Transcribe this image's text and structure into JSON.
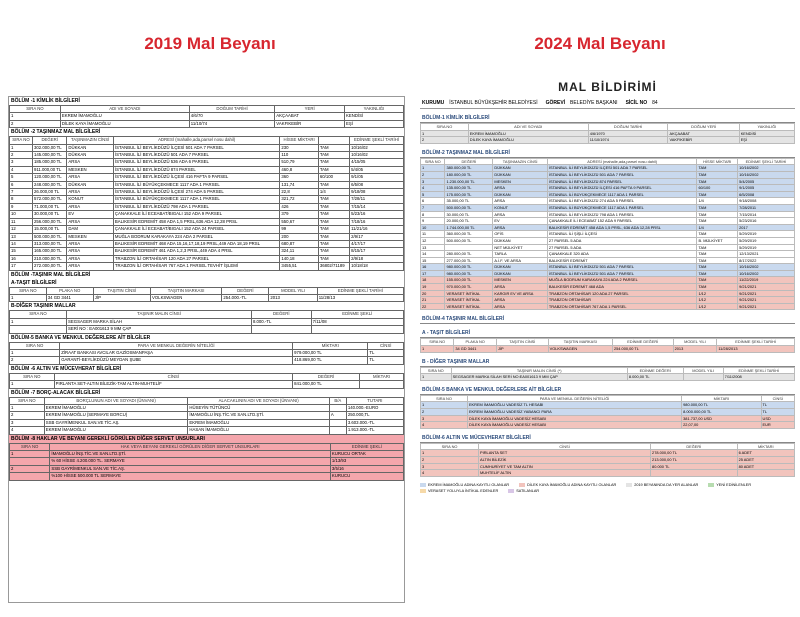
{
  "left": {
    "heading": "2019 Mal Beyanı",
    "sections": [
      {
        "title": "BÖLÜM -1 KİMLİK BİLGİLERİ",
        "headers": [
          "SIRA NO",
          "ADI VE SOYADI",
          "DOĞUM TARİHİ",
          "YERİ",
          "YAKINLIĞI"
        ],
        "rows": [
          [
            "1",
            "EKREM İMAMOĞLU",
            "4/6/70",
            "AKÇAABAT",
            "KENDİSİ"
          ],
          [
            "2",
            "DİLEK KAYA İMAMOĞLU",
            "11/10/74",
            "VAKFIKEBİR",
            "EŞİ"
          ]
        ]
      },
      {
        "title": "BÖLÜM -2 TAŞINMAZ MAL BİLGİLERİ",
        "headers": [
          "SIRA NO",
          "DEĞERİ",
          "TAŞINMAZIN CİNSİ",
          "ADRESİ (mahalle,ada,parsel nosu dahil)",
          "HİSSE MİKTARI",
          "",
          "EDİNME ŞEKLİ TARİHİ"
        ],
        "rows": [
          [
            "1",
            "302.000,00 TL",
            "DÜKKAN",
            "İSTANBUL İLİ BEYLİKDÜZÜ İLÇESİ 501 ADA 7 PARSEL",
            "230",
            "TAM",
            "10/16/02"
          ],
          [
            "2",
            "145.000,00 TL",
            "DÜKKAN",
            "İSTANBUL İLİ BEYLİKDÜZÜ 501 ADA 7 PARSEL",
            "110",
            "TAM",
            "10/16/02"
          ],
          [
            "3",
            "185.000,00 TL",
            "ARSA",
            "İSTANBUL İLİ BEYLİKDÜZÜ 536 ADA 6 PARSEL",
            "510,79",
            "TAM",
            "4/15/05"
          ],
          [
            "4",
            "911.000,00 TL",
            "MESKEN",
            "İSTANBUL İLİ BEYLİKDÜZÜ 874 PARSEL",
            "460,8",
            "TAM",
            "5/4/05"
          ],
          [
            "5",
            "120.000,00 TL",
            "ARSA",
            "İSTANBUL İLİ BEYLİKDÜZÜ İLÇESİ 416 PAFTA 9 PARSEL",
            "360",
            "60/100",
            "9/1/05"
          ],
          [
            "6",
            "248.000,00 TL",
            "DÜKKAN",
            "İSTANBUL İLİ BÜYÜKÇEKMECE 1117 ADA 1 PARSEL",
            "131,74",
            "TAM",
            "6/5/08"
          ],
          [
            "7",
            "26.000,00 TL",
            "ARSA",
            "İSTANBUL İLİ BEYLİKDÜZÜ İLÇESİ 274 ADA 5 PARSEL",
            "22,8",
            "1/4",
            "9/18/08"
          ],
          [
            "8",
            "572.000,00 TL",
            "KONUT",
            "İSTANBUL İLİ BÜYÜKÇEKMECE 1117 ADA 1 PARSEL",
            "321,72",
            "TAM",
            "7/28/11"
          ],
          [
            "9",
            "71.000,00 TL",
            "ARSA",
            "İSTANBUL İLİ BEYLİKDÜZÜ 798 ADA 1 PARSEL",
            "426",
            "TAM",
            "7/15/14"
          ],
          [
            "10",
            "30.000,00 TL",
            "EV",
            "ÇANAKKALE İLİ ECEABAT/BIGALI 152 ADA 9 PARSEL",
            "379",
            "TAM",
            "5/23/16"
          ],
          [
            "11",
            "256.000,00 TL",
            "ARSA",
            "BALIKESİR EDREMİT 458 ADA 1,5 PRSL,636 ADA 12,28 PRSL",
            "550,67",
            "TAM",
            "7/18/16"
          ],
          [
            "12",
            "15.000,00 TL",
            "DAM",
            "ÇANAKKALE İLİ ECEABAT/BIGALI 152 ADA 24 PARSEL",
            "99",
            "TAM",
            "11/21/16"
          ],
          [
            "13",
            "500.000,00 TL",
            "MESKEN",
            "MUĞLA BODRUM KARAKAYA 224 ADA 2 PARSEL",
            "200",
            "TAM",
            "2/9/17"
          ],
          [
            "14",
            "313.000,00 TL",
            "ARSA",
            "BALIKESİR EDREMİT 468 ADA 15,16,17,18,19 PRSL,449 ADA 18,19 PRSL",
            "680,87",
            "TAM",
            "4/17/17"
          ],
          [
            "15",
            "165.000,00 TL",
            "ARSA",
            "BALIKESİR EDREMİT 461 ADA 1,2,3 PRSL,449 ADA 4 PRSL",
            "324,11",
            "TAM",
            "8/15/17"
          ],
          [
            "16",
            "210.000,00 TL",
            "ARSA",
            "TRABZON İLİ ORTAHİSAR 120 ADA 27 PARSEL",
            "140,18",
            "TAM",
            "2/9/18"
          ],
          [
            "17",
            "272.000,00 TL",
            "ARSA",
            "TRABZON İLİ ORTAHİSAR 767 ADA 1 PARSEL TEVHİT İŞLEMİ",
            "3455,51",
            "36802/71189",
            "10/18/18"
          ]
        ]
      },
      {
        "title": "BÖLÜM -TAŞINIR MAL BİLGİLERİ",
        "headers": [],
        "rows": []
      },
      {
        "title": "A-TAŞIT BİLGİLERİ",
        "headers": [
          "SIRA NO",
          "PLAKA NO",
          "TAŞITIN CİNSİ",
          "TAŞITIN MARKASI",
          "DEĞERİ",
          "MODEL YILI",
          "EDİNME ŞEKLİ TARİHİ"
        ],
        "rows": [
          [
            "1",
            "34 GD 3441",
            "JİP",
            "VOLKSWAGEN",
            "254.000.-TL",
            "2013",
            "11/28/13"
          ]
        ]
      },
      {
        "title": "B-DİĞER TAŞINIR MALLAR",
        "headers": [
          "SIRA NO",
          "TAŞINIR MALIN CİNSİ",
          "DEĞERİ",
          "EDİNME ŞEKLİ"
        ],
        "rows": [
          [
            "1",
            "SEGSAGER MARKA SİLAH",
            "8.000.-TL",
            "7/11/08"
          ],
          [
            "",
            "SERİ NO : EA001613 9 MM ÇAP",
            "",
            ""
          ]
        ]
      },
      {
        "title": "BÖLÜM-5 BANKA VE MENKUL DEĞERLERE AİT BİLGİLER",
        "headers": [
          "SIRA NO",
          "PARA VE MENKUL DEĞERİN NİTELİĞİ",
          "MİKTARI",
          "CİNSİ"
        ],
        "rows": [
          [
            "1",
            "ZİRAAT BANKASI AVCILAR GAZİOSMANPAŞA",
            "979.000,00 TL",
            "TL"
          ],
          [
            "2",
            "GARANTİ-BEYLİKDÜZÜ MEYDAN ŞUBE",
            "418.869,00 TL",
            "TL"
          ]
        ]
      },
      {
        "title": "BÖLÜM -6 ALTIN VE MÜCEVHERAT BİLGİLERİ",
        "headers": [
          "SIRA NO",
          "CİNSİ",
          "DEĞERİ",
          "MİKTARI"
        ],
        "rows": [
          [
            "1",
            "PIRLANTA SET-ALTIN BİLEZİK-TAM ALTIN-MUHTELİF",
            "841.000,00 TL",
            ""
          ]
        ]
      },
      {
        "title": "BÖLÜM -7 BORÇ-ALACAK BİLGİLERİ",
        "headers": [
          "SIRA NO",
          "BORÇLUNUN ADI VE SOYADI (ÜNVANI)",
          "ALACAKLININ ADI VE SOYADI (ÜNVANI)",
          "B/A",
          "TUTARI"
        ],
        "rows": [
          [
            "1",
            "EKREM İMAMOĞLU",
            "HÜSEYİN TÜTÜNCÜ",
            "",
            "140.000.-EURO"
          ],
          [
            "2",
            "EKREM İMAMOĞLU (SERMAYE BORCU)",
            "İMAMOĞLU İNŞ.TİC.VE SAN.LTD.ŞTİ.",
            "A",
            "250.000,TL"
          ],
          [
            "3",
            "SSB GAYRİMENKUL SAN.VE TİC.AŞ.",
            "EKREM İMAMOĞLU",
            "",
            "3.603.000.-TL"
          ],
          [
            "4",
            "EKREM İMAMOĞLU",
            "HASAN İMAMOĞLU",
            "",
            "1.913.000.-TL"
          ]
        ]
      },
      {
        "title": "BÖLÜM -8 HAKLAR VE BEYANI GEREKLİ GÖRÜLEN DİĞER SERVET UNSURLARI",
        "headers": [
          "SIRA NO",
          "HAK VEYA BEYANI GEREKLİ GÖRÜLEN DİĞER SERVET UNSURLARI",
          "EDİNME ŞEKLİ"
        ],
        "rows": [
          [
            "1",
            "İMAMOĞLU İNŞ.TİC.VE SAN.LTD.ŞTİ.",
            "KURUCU ORTAK"
          ],
          [
            "",
            "% 60 HİSSE 4.200.000 TL. SERMAYE",
            "1/13/93"
          ],
          [
            "2",
            "SSB GAYRİMENKUL SAN.VE TİC.AŞ.",
            "3/5/16"
          ],
          [
            "",
            "%100 HİSSE 500.000 TL SERMAYE",
            "KURUCU"
          ]
        ],
        "color": "#f4a6ac"
      }
    ]
  },
  "right": {
    "heading": "2024 Mal Beyanı",
    "doc_title": "MAL BİLDİRİMİ",
    "info": [
      [
        "KURUMU",
        "İSTANBUL BÜYÜKŞEHİR BELEDİYESİ"
      ],
      [
        "GÖREVİ",
        "BELEDİYE BAŞKANI"
      ],
      [
        "SİCİL NO",
        "84"
      ]
    ],
    "sections": [
      {
        "title": "BÖLÜM-1 KİMLİK BİLGİLERİ",
        "headers": [
          "SIRA NO",
          "ADI VE SOYADI",
          "DOĞUM TARİHİ",
          "DOĞUM YERİ",
          "YAKINLIĞI"
        ],
        "rows": [
          [
            "1",
            "EKREM İMAMOĞLU",
            "4/6/1970",
            "AKÇAABAT",
            "KENDİSİ"
          ],
          [
            "2",
            "DİLEK KAYA İMAMOĞLU",
            "11/10/1974",
            "VAKFIKEBİR",
            "EŞİ"
          ]
        ],
        "row_colors": [
          "#e4e4e4",
          "#e4e4e4"
        ]
      },
      {
        "title": "BÖLÜM-2 TAŞINMAZ MAL BİLGİLERİ",
        "headers": [
          "SIRA NO",
          "DEĞERİ",
          "TAŞINMAZIN CİNSİ",
          "ADRESİ (mahalle,ada,parsel nosu dahil)",
          "HİSSE MİKTARI",
          "EDİNME ŞEKLİ TARİHİ"
        ],
        "rows": [
          [
            "1",
            "380.000,00 TL",
            "DÜKKAN",
            "İSTANBUL İLİ BEYLİKDÜZÜ İLÇESİ 501 ADA 7 PARSEL",
            "TAM",
            "10/16/2002"
          ],
          [
            "2",
            "180.000,00 TL",
            "DÜKKAN",
            "İSTANBUL İLİ BEYLİKDÜZÜ 501 ADA 7 PARSEL",
            "TAM",
            "10/16/2002"
          ],
          [
            "3",
            "1.230.000,00 TL",
            "MESKEN",
            "İSTANBUL İLİ BEYLİKDÜZÜ 874 PARSEL",
            "TAM",
            "5/4/2005"
          ],
          [
            "4",
            "135.000,00 TL",
            "ARSA",
            "İSTANBUL İLİ BEYLİKDÜZÜ İLÇESİ 416 PAFTA 9 PARSEL",
            "60/100",
            "9/1/2005"
          ],
          [
            "5",
            "175.000,00 TL",
            "DÜKKAN",
            "İSTANBUL İLİ BÜYÜKÇEKMECE 1117 ADA 1 PARSEL",
            "TAM",
            "6/5/2008"
          ],
          [
            "6",
            "35.000,00 TL",
            "ARSA",
            "İSTANBUL İLİ BEYLİKDÜZÜ 274 ADA 5 PARSEL",
            "1/4",
            "9/18/2008"
          ],
          [
            "7",
            "500.000,00 TL",
            "KONUT",
            "İSTANBUL İLİ BÜYÜKÇEKMECE 1117 ADA 1 PARSEL",
            "TAM",
            "7/28/2011"
          ],
          [
            "8",
            "30.000,00 TL",
            "ARSA",
            "İSTANBUL İLİ BEYLİKDÜZÜ 798 ADA 1 PARSEL",
            "TAM",
            "7/15/2014"
          ],
          [
            "9",
            "20.000,00 TL",
            "EV",
            "ÇANAKKALE İLİ ECEABAT 152 ADA 9 PARSEL",
            "TAM",
            "5/23/2016"
          ],
          [
            "10",
            "1.744.000,00 TL",
            "ARSA",
            "BALIKESİR EDREMİT 458 ADA 1,5 PRSL, 636 ADA 12,28 PRSL",
            "1/4",
            "2017"
          ],
          [
            "11",
            "360.000,00 TL",
            "OFİS",
            "İSTANBUL İLİ ŞİŞLİ İLÇESİ",
            "TAM",
            "5/29/2019"
          ],
          [
            "12",
            "500.000,00 TL",
            "DÜKKAN",
            "27 PARSEL 5 ADA",
            "B. MÜLKİYET",
            "5/29/2019"
          ],
          [
            "13",
            "",
            "NET MÜLKİYET",
            "27 PARSEL 5 ADA",
            "TAM",
            "5/29/2019"
          ],
          [
            "14",
            "280.000,00 TL",
            "TARLA",
            "ÇANAKKALE 320 ADA",
            "TAM",
            "12/13/2021"
          ],
          [
            "15",
            "277.000,00 TL",
            "A.İ.F. VE ARSA",
            "BALIKESİR EDREMİT",
            "TAM",
            "8/17/2022"
          ],
          [
            "16",
            "980.000,00 TL",
            "DÜKKAN",
            "İSTANBUL İLİ BEYLİKDÜZÜ 501 ADA 7 PARSEL",
            "TAM",
            "10/16/2002"
          ],
          [
            "17",
            "980.000,00 TL",
            "DÜKKAN",
            "İSTANBUL İLİ BEYLİKDÜZÜ 501 ADA 7 PARSEL",
            "TAM",
            "10/16/2002"
          ],
          [
            "18",
            "155.000,00 TL",
            "MESKEN",
            "MUĞLA BODRUM KARAKAYA 224 ADA 2 PARSEL",
            "TAM",
            "11/22/2019"
          ],
          [
            "19",
            "970.000,00 TL",
            "ARSA",
            "BALIKESİR EDREMİT 468 ADA",
            "TAM",
            "9/21/2021"
          ],
          [
            "20",
            "VERASET İNTİKAL",
            "KARGIR EV VE ARSA",
            "TRABZON ORTAHİSAR 120 ADA 27 PARSEL",
            "1/12",
            "9/21/2021"
          ],
          [
            "21",
            "VERASET İNTİKAL",
            "ARSA",
            "TRABZON ORTAHİSAR",
            "1/12",
            "9/21/2021"
          ],
          [
            "22",
            "VERASET İNTİKAL",
            "ARSA",
            "TRABZON ORTAHİSAR 767 ADA 1 PARSEL",
            "1/12",
            "9/21/2021"
          ]
        ],
        "row_colors": [
          "#c9d9ee",
          "#c9d9ee",
          "#c9d9ee",
          "#c9d9ee",
          "#c9d9ee",
          "#ffffff",
          "#c9d9ee",
          "#ffffff",
          "#ffffff",
          "#c9d9ee",
          "#ffffff",
          "#ffffff",
          "#ffffff",
          "#ffffff",
          "#ffffff",
          "#c9d9ee",
          "#c9d9ee",
          "#f2c4bd",
          "#f2c4bd",
          "#f2c4bd",
          "#f2c4bd",
          "#f2c4bd"
        ]
      },
      {
        "title": "BÖLÜM-4 TAŞINIR MAL BİLGİLERİ",
        "headers": [],
        "rows": []
      },
      {
        "title": "A - TAŞIT BİLGİLERİ",
        "headers": [
          "SIRA NO",
          "PLAKA NO",
          "TAŞITIN CİNSİ",
          "TAŞITIN MARKASI",
          "EDİNME DEĞERİ",
          "MODEL YILI",
          "EDİNME ŞEKLİ TARİHİ"
        ],
        "rows": [
          [
            "1",
            "34 GD 3441",
            "JİP",
            "VOLKSWAGEN",
            "254.000,00 TL",
            "2013",
            "11/28/2013"
          ]
        ],
        "row_colors": [
          "#f2c4bd"
        ]
      },
      {
        "title": "B - DİĞER TAŞINIR MALLAR",
        "headers": [
          "SIRA NO",
          "TAŞINIR MALIN CİNSİ (*)",
          "EDİNME DEĞERİ",
          "MODEL YILI",
          "EDİNME ŞEKLİ TARİHİ"
        ],
        "rows": [
          [
            "1",
            "SEGSAGER MARKA SİLAH SERİ NO:EA001613 9 MM ÇAP",
            "8.000,00 TL",
            "",
            "7/11/2008"
          ]
        ],
        "row_colors": [
          "#e4e4e4"
        ]
      },
      {
        "title": "BÖLÜM-5 BANKA VE MENKUL DEĞERLERE AİT BİLGİLER",
        "headers": [
          "SIRA NO",
          "PARA VE MENKUL DEĞERİN NİTELİĞİ",
          "MİKTARI",
          "CİNSİ"
        ],
        "rows": [
          [
            "1",
            "EKREM İMAMOĞLU VADESİZ TL HESABI",
            "980.000,00 TL",
            "TL"
          ],
          [
            "2",
            "EKREM İMAMOĞLU VADESİZ YABANCI PARA",
            "8.000.000,00 TL",
            "TL"
          ],
          [
            "3",
            "DİLEK KAYA İMAMOĞLU VADESİZ HESABI",
            "381.737,00 USD",
            "USD"
          ],
          [
            "4",
            "DİLEK KAYA İMAMOĞLU VADESİZ HESABI",
            "22,07,00",
            "EUR"
          ]
        ],
        "row_colors": [
          "#c9d9ee",
          "#c9d9ee",
          "#f2c4bd",
          "#f2c4bd"
        ]
      },
      {
        "title": "BÖLÜM-6 ALTIN VE MÜCEVHERAT BİLGİLERİ",
        "headers": [
          "SIRA NO",
          "CİNSİ",
          "DEĞERİ",
          "MİKTARI"
        ],
        "rows": [
          [
            "1",
            "PIRLANTA SET",
            "278.000,00 TL",
            "6 ADET"
          ],
          [
            "2",
            "ALTIN BİLEZİK",
            "213.000,00 TL",
            "25 ADET"
          ],
          [
            "3",
            "CUMHURİYET VE TAM ALTIN",
            "80.000 TL",
            "80 ADET"
          ],
          [
            "4",
            "MUHTELİF ALTIN",
            "",
            ""
          ]
        ],
        "row_colors": [
          "#f2c4bd",
          "#f2c4bd",
          "#f2c4bd",
          "#f2c4bd"
        ]
      }
    ],
    "legend": [
      {
        "color": "#c9d9ee",
        "text": "EKREM İMAMOĞLU ADINA KAYITLI OLANLAR"
      },
      {
        "color": "#f2c4bd",
        "text": "DİLEK KAYA İMAMOĞLU ADINA KAYITLI OLANLAR"
      },
      {
        "color": "#e4e4e4",
        "text": "2019 BEYANINDA DA YER ALANLAR"
      },
      {
        "color": "#b7dcb0",
        "text": "YENİ EDİNİLENLER"
      },
      {
        "color": "#f6d9a8",
        "text": "VERASET YOLUYLA İNTİKAL EDENLER"
      },
      {
        "color": "#d8c6e6",
        "text": "SATILANLAR"
      }
    ]
  }
}
